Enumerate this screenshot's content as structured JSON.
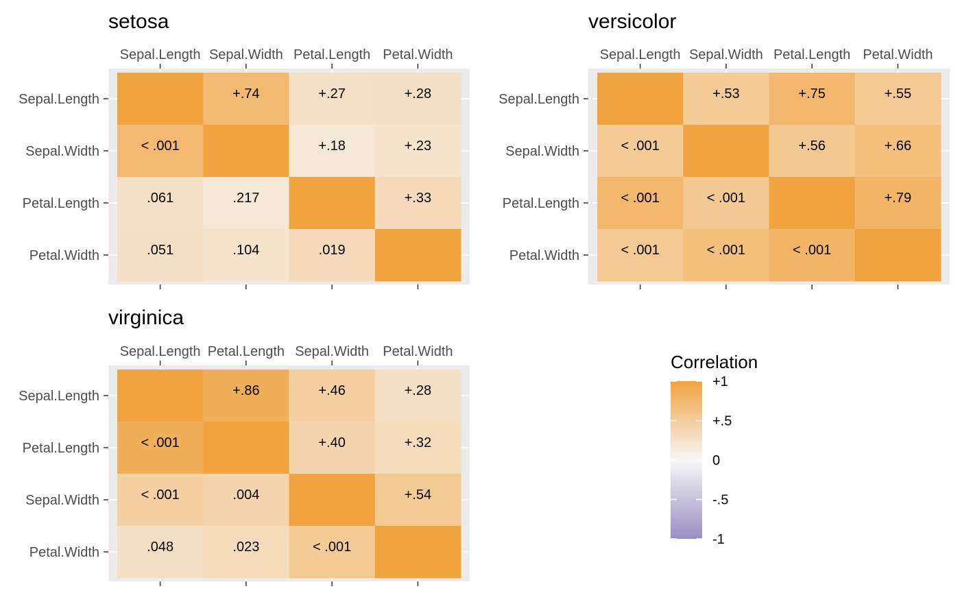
{
  "chart_data": [
    {
      "type": "heatmap",
      "title": "setosa",
      "variables": [
        "Sepal.Length",
        "Sepal.Width",
        "Petal.Length",
        "Petal.Width"
      ],
      "correlations": [
        [
          1,
          0.74,
          0.27,
          0.28
        ],
        [
          0.74,
          1,
          0.18,
          0.23
        ],
        [
          0.27,
          0.18,
          1,
          0.33
        ],
        [
          0.28,
          0.23,
          0.33,
          1
        ]
      ],
      "labels": [
        [
          "",
          "+.74",
          "+.27",
          "+.28"
        ],
        [
          "< .001",
          "",
          "+.18",
          "+.23"
        ],
        [
          ".061",
          ".217",
          "",
          "+.33"
        ],
        [
          ".051",
          ".104",
          ".019",
          ""
        ]
      ]
    },
    {
      "type": "heatmap",
      "title": "versicolor",
      "variables": [
        "Sepal.Length",
        "Sepal.Width",
        "Petal.Length",
        "Petal.Width"
      ],
      "correlations": [
        [
          1,
          0.53,
          0.75,
          0.55
        ],
        [
          0.53,
          1,
          0.56,
          0.66
        ],
        [
          0.75,
          0.56,
          1,
          0.79
        ],
        [
          0.55,
          0.66,
          0.79,
          1
        ]
      ],
      "labels": [
        [
          "",
          "+.53",
          "+.75",
          "+.55"
        ],
        [
          "< .001",
          "",
          "+.56",
          "+.66"
        ],
        [
          "< .001",
          "< .001",
          "",
          "+.79"
        ],
        [
          "< .001",
          "< .001",
          "< .001",
          ""
        ]
      ]
    },
    {
      "type": "heatmap",
      "title": "virginica",
      "variables": [
        "Sepal.Length",
        "Petal.Length",
        "Sepal.Width",
        "Petal.Width"
      ],
      "correlations": [
        [
          1,
          0.86,
          0.46,
          0.28
        ],
        [
          0.86,
          1,
          0.4,
          0.32
        ],
        [
          0.46,
          0.4,
          1,
          0.54
        ],
        [
          0.28,
          0.32,
          0.54,
          1
        ]
      ],
      "labels": [
        [
          "",
          "+.86",
          "+.46",
          "+.28"
        ],
        [
          "< .001",
          "",
          "+.40",
          "+.32"
        ],
        [
          "< .001",
          ".004",
          "",
          "+.54"
        ],
        [
          ".048",
          ".023",
          "< .001",
          ""
        ]
      ]
    }
  ],
  "legend": {
    "title": "Correlation",
    "range": [
      -1,
      1
    ],
    "ticks": [
      1,
      0.5,
      0,
      -0.5,
      -1
    ],
    "tick_labels": [
      "+1",
      "+.5",
      "0",
      "-.5",
      "-1"
    ],
    "colors": {
      "high": "#f1a340",
      "mid": "#f7f7f7",
      "low": "#998ec3"
    }
  }
}
